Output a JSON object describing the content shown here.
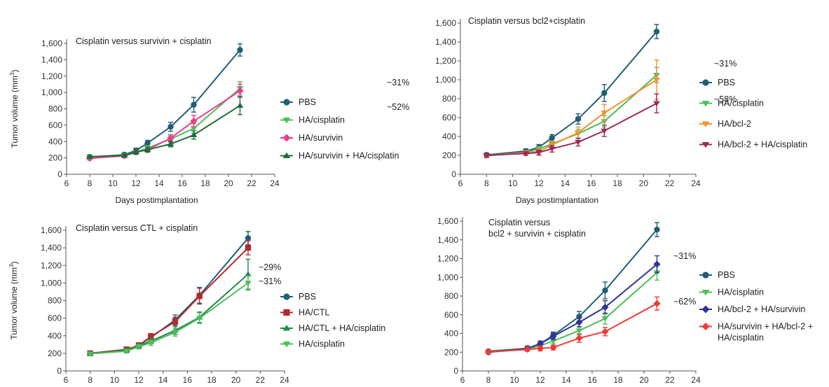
{
  "chart_data": [
    {
      "type": "line",
      "title": "Cisplatin versus survivin + cisplatin",
      "title_lines": [
        "Cisplatin versus survivin + cisplatin"
      ],
      "xlabel": "Days postimplantation",
      "ylabel": "Tumor volume (mm³)",
      "ylabel_main": "Tumor volume (mm",
      "ylabel_sup": "3",
      "ylabel_close": ")",
      "xlim": [
        6,
        24
      ],
      "ylim": [
        0,
        1600
      ],
      "xticks": [
        "6",
        "8",
        "10",
        "12",
        "14",
        "16",
        "18",
        "20",
        "22",
        "24"
      ],
      "yticks": [
        "0",
        "200",
        "400",
        "600",
        "800",
        "1,000",
        "1,200",
        "1,400",
        "1,600"
      ],
      "legend_position": "right",
      "annotations": [
        "~31%",
        "~52%"
      ],
      "series": [
        {
          "name": "PBS",
          "color": "#1e5f74",
          "marker": "circle",
          "x": [
            8,
            11,
            12,
            13,
            15,
            17,
            21
          ],
          "y": [
            210,
            240,
            290,
            380,
            580,
            850,
            1520
          ],
          "err": [
            25,
            25,
            30,
            35,
            55,
            90,
            75
          ]
        },
        {
          "name": "HA/cisplatin",
          "color": "#4dbd5a",
          "marker": "triangle-down",
          "x": [
            8,
            11,
            12,
            13,
            15,
            17,
            21
          ],
          "y": [
            210,
            235,
            270,
            320,
            430,
            560,
            1050
          ],
          "err": [
            20,
            20,
            25,
            30,
            40,
            55,
            80
          ]
        },
        {
          "name": "HA/survivin",
          "color": "#ee3b8f",
          "marker": "diamond",
          "x": [
            8,
            11,
            12,
            13,
            15,
            17,
            21
          ],
          "y": [
            195,
            225,
            270,
            300,
            440,
            650,
            1020
          ],
          "err": [
            20,
            20,
            25,
            30,
            45,
            70,
            80
          ]
        },
        {
          "name": "HA/survivin + HA/cisplatin",
          "color": "#1f6b3a",
          "marker": "triangle-up",
          "x": [
            8,
            11,
            12,
            13,
            15,
            17,
            21
          ],
          "y": [
            215,
            230,
            270,
            300,
            370,
            480,
            840
          ],
          "err": [
            20,
            20,
            25,
            30,
            35,
            50,
            110
          ]
        }
      ]
    },
    {
      "type": "line",
      "title": "Cisplatin versus bcl2+cisplatin",
      "title_lines": [
        "Cisplatin versus bcl2+cisplatin"
      ],
      "xlabel": "Days postimplantation",
      "ylabel": "",
      "xlim": [
        6,
        24
      ],
      "ylim": [
        0,
        1600
      ],
      "xticks": [
        "6",
        "8",
        "10",
        "12",
        "14",
        "16",
        "18",
        "20",
        "22",
        "24"
      ],
      "yticks": [
        "0",
        "200",
        "400",
        "600",
        "800",
        "1,000",
        "1,200",
        "1,400",
        "1,600"
      ],
      "legend_position": "right",
      "annotations": [
        "~31%",
        "~58%"
      ],
      "series": [
        {
          "name": "PBS",
          "color": "#1e5f74",
          "marker": "circle",
          "x": [
            8,
            11,
            12,
            13,
            15,
            17,
            21
          ],
          "y": [
            205,
            245,
            285,
            385,
            585,
            860,
            1510
          ],
          "err": [
            20,
            25,
            30,
            35,
            55,
            90,
            75
          ]
        },
        {
          "name": "HA/cisplatin",
          "color": "#4dbd5a",
          "marker": "triangle-down",
          "x": [
            8,
            11,
            12,
            13,
            15,
            17,
            21
          ],
          "y": [
            200,
            230,
            270,
            320,
            430,
            560,
            1050
          ],
          "err": [
            20,
            20,
            25,
            30,
            45,
            60,
            80
          ]
        },
        {
          "name": "HA/bcl-2",
          "color": "#f7902e",
          "marker": "triangle-down",
          "x": [
            8,
            11,
            12,
            13,
            15,
            17,
            21
          ],
          "y": [
            195,
            230,
            240,
            310,
            440,
            650,
            1000
          ],
          "err": [
            20,
            20,
            40,
            40,
            60,
            90,
            210
          ]
        },
        {
          "name": "HA/bcl-2 + HA/cisplatin",
          "color": "#9b2a5a",
          "marker": "triangle-down",
          "x": [
            8,
            11,
            12,
            13,
            15,
            17,
            21
          ],
          "y": [
            200,
            220,
            230,
            270,
            340,
            460,
            750
          ],
          "err": [
            20,
            20,
            25,
            35,
            40,
            60,
            100
          ]
        }
      ]
    },
    {
      "type": "line",
      "title": "Cisplatin versus CTL + cisplatin",
      "title_lines": [
        "Cisplatin versus CTL + cisplatin"
      ],
      "xlabel": "",
      "ylabel": "Tumor volume (mm³)",
      "ylabel_main": "Tumor volume (mm",
      "ylabel_sup": "3",
      "ylabel_close": ")",
      "xlim": [
        6,
        24
      ],
      "ylim": [
        0,
        1600
      ],
      "xticks": [
        "6",
        "8",
        "10",
        "12",
        "14",
        "16",
        "18",
        "20",
        "22",
        "24"
      ],
      "yticks": [
        "0",
        "200",
        "400",
        "600",
        "800",
        "1,000",
        "1,200",
        "1,400",
        "1,600"
      ],
      "legend_position": "right",
      "annotations": [
        "~29%",
        "~31%"
      ],
      "series": [
        {
          "name": "PBS",
          "color": "#1e5f74",
          "marker": "circle",
          "x": [
            8,
            11,
            12,
            13,
            15,
            17,
            21
          ],
          "y": [
            200,
            240,
            290,
            380,
            580,
            860,
            1510
          ],
          "err": [
            20,
            25,
            30,
            35,
            55,
            90,
            75
          ]
        },
        {
          "name": "HA/CTL",
          "color": "#b22a2e",
          "marker": "square",
          "x": [
            8,
            11,
            12,
            13,
            15,
            17,
            21
          ],
          "y": [
            200,
            245,
            290,
            390,
            560,
            850,
            1400
          ],
          "err": [
            20,
            25,
            30,
            35,
            50,
            90,
            80
          ]
        },
        {
          "name": "HA/CTL + HA/cisplatin",
          "color": "#1f8a4a",
          "marker": "triangle-up",
          "x": [
            8,
            11,
            12,
            13,
            15,
            17,
            21
          ],
          "y": [
            195,
            235,
            285,
            340,
            460,
            610,
            1100
          ],
          "err": [
            20,
            20,
            25,
            30,
            45,
            60,
            170
          ]
        },
        {
          "name": "HA/cisplatin",
          "color": "#4dbd5a",
          "marker": "triangle-down",
          "x": [
            8,
            11,
            12,
            13,
            15,
            17,
            21
          ],
          "y": [
            195,
            225,
            275,
            320,
            440,
            600,
            1000
          ],
          "err": [
            20,
            20,
            25,
            30,
            45,
            60,
            80
          ]
        }
      ]
    },
    {
      "type": "line",
      "title": "Cisplatin versus bcl2 + survivin + cisplatin",
      "title_lines": [
        "Cisplatin versus",
        "bcl2 + survivin + cisplatin"
      ],
      "xlabel": "",
      "ylabel": "",
      "xlim": [
        6,
        24
      ],
      "ylim": [
        0,
        1600
      ],
      "xticks": [
        "6",
        "8",
        "10",
        "12",
        "14",
        "16",
        "18",
        "20",
        "22",
        "24"
      ],
      "yticks": [
        "0",
        "200",
        "400",
        "600",
        "800",
        "1,000",
        "1,200",
        "1,400",
        "1,600"
      ],
      "legend_position": "right",
      "annotations": [
        "~31%",
        "~62%"
      ],
      "series": [
        {
          "name": "PBS",
          "color": "#1e5f74",
          "marker": "circle",
          "x": [
            8,
            11,
            12,
            13,
            15,
            17,
            21
          ],
          "y": [
            210,
            240,
            290,
            380,
            580,
            860,
            1510
          ],
          "err": [
            20,
            25,
            30,
            35,
            55,
            90,
            75
          ]
        },
        {
          "name": "HA/cisplatin",
          "color": "#4dbd5a",
          "marker": "triangle-down",
          "x": [
            8,
            11,
            12,
            13,
            15,
            17,
            21
          ],
          "y": [
            200,
            230,
            270,
            320,
            430,
            560,
            1050
          ],
          "err": [
            20,
            20,
            25,
            30,
            45,
            60,
            80
          ]
        },
        {
          "name": "HA/bcl-2 + HA/survivin",
          "color": "#2f3597",
          "marker": "diamond",
          "x": [
            8,
            11,
            12,
            13,
            15,
            17,
            21
          ],
          "y": [
            200,
            240,
            290,
            370,
            520,
            680,
            1140
          ],
          "err": [
            20,
            25,
            30,
            35,
            50,
            70,
            90
          ]
        },
        {
          "name": "HA/survivin + HA/bcl-2 + HA/cisplatin",
          "legend_lines": [
            "HA/survivin + HA/bcl-2 +",
            "HA/cisplatin"
          ],
          "color": "#ef3b34",
          "marker": "diamond",
          "x": [
            8,
            11,
            12,
            13,
            15,
            17,
            21
          ],
          "y": [
            205,
            230,
            240,
            250,
            350,
            420,
            720
          ],
          "err": [
            20,
            20,
            25,
            25,
            45,
            45,
            70
          ]
        }
      ]
    }
  ]
}
